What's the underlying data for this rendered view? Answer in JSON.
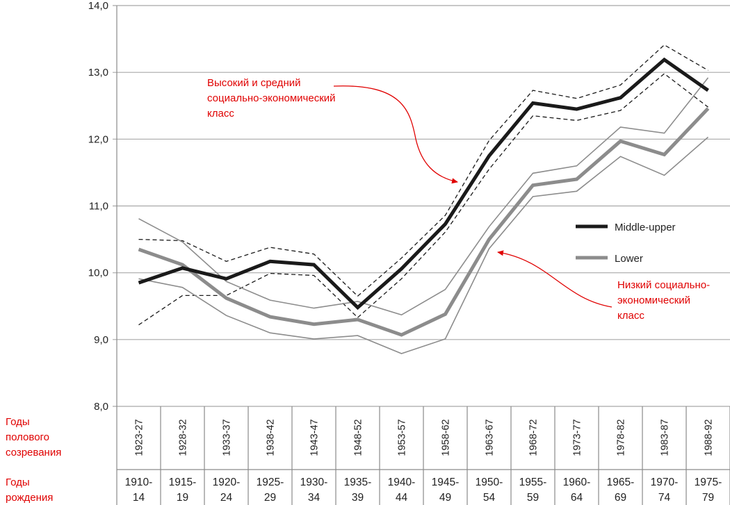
{
  "chart_data": {
    "type": "line",
    "categories": [
      "1923-27",
      "1928-32",
      "1933-37",
      "1938-42",
      "1943-47",
      "1948-52",
      "1953-57",
      "1958-62",
      "1963-67",
      "1968-72",
      "1973-77",
      "1978-82",
      "1983-87",
      "1988-92"
    ],
    "birth_years": [
      [
        "1910-",
        "14"
      ],
      [
        "1915-",
        "19"
      ],
      [
        "1920-",
        "24"
      ],
      [
        "1925-",
        "29"
      ],
      [
        "1930-",
        "34"
      ],
      [
        "1935-",
        "39"
      ],
      [
        "1940-",
        "44"
      ],
      [
        "1945-",
        "49"
      ],
      [
        "1950-",
        "54"
      ],
      [
        "1955-",
        "59"
      ],
      [
        "1960-",
        "64"
      ],
      [
        "1965-",
        "69"
      ],
      [
        "1970-",
        "74"
      ],
      [
        "1975-",
        "79"
      ]
    ],
    "ylim": [
      8.0,
      14.0
    ],
    "yticks": [
      "8,0",
      "9,0",
      "10,0",
      "11,0",
      "12,0",
      "13,0",
      "14,0"
    ],
    "grid": true,
    "legend_position": "right",
    "series": [
      {
        "name": "Middle-upper",
        "color": "#1a1a1a",
        "values": [
          9.85,
          10.07,
          9.91,
          10.17,
          10.12,
          9.48,
          10.06,
          10.73,
          11.75,
          12.54,
          12.45,
          12.62,
          13.19,
          12.73
        ]
      },
      {
        "name": "Lower",
        "color": "#8c8c8c",
        "values": [
          10.35,
          10.12,
          9.62,
          9.34,
          9.23,
          9.3,
          9.07,
          9.38,
          10.5,
          11.31,
          11.4,
          11.97,
          11.77,
          12.46
        ]
      }
    ],
    "ci_bands": [
      {
        "series": "Middle-upper",
        "style": "dashed",
        "upper": [
          10.5,
          10.48,
          10.17,
          10.38,
          10.28,
          9.65,
          10.22,
          10.86,
          11.98,
          12.73,
          12.61,
          12.81,
          13.41,
          13.03
        ],
        "lower": [
          9.22,
          9.66,
          9.66,
          9.99,
          9.96,
          9.33,
          9.91,
          10.61,
          11.55,
          12.35,
          12.28,
          12.43,
          12.98,
          12.48
        ]
      },
      {
        "series": "Lower",
        "style": "thin",
        "upper": [
          10.81,
          10.46,
          9.87,
          9.59,
          9.47,
          9.57,
          9.37,
          9.75,
          10.69,
          11.49,
          11.6,
          12.18,
          12.09,
          12.92
        ],
        "lower": [
          9.91,
          9.78,
          9.36,
          9.1,
          9.01,
          9.06,
          8.79,
          9.01,
          10.36,
          11.14,
          11.22,
          11.74,
          11.46,
          12.03
        ]
      }
    ],
    "row_labels": {
      "puberty": "Годы полового созревания",
      "birth": "Годы рождения"
    },
    "annotations": {
      "high": [
        "Высокий и средний",
        "социально-экономический",
        "класс"
      ],
      "low": [
        "Низкий социально-",
        "экономический",
        "класс"
      ]
    },
    "annotation_color": "#e00000"
  }
}
